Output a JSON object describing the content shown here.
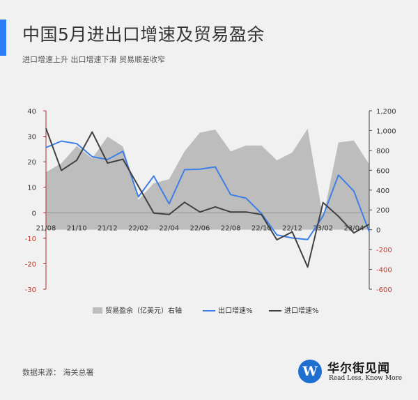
{
  "header": {
    "title": "中国5月进出口增速及贸易盈余",
    "subtitle": "进口增速上升 出口增速下滑 贸易顺差收窄"
  },
  "footer": {
    "source": "数据来源： 海关总署",
    "logo_name": "华尔街见闻",
    "logo_slogan": "Read Less, Know More",
    "logo_mark": "W"
  },
  "colors": {
    "accent": "#2e7cf6",
    "area": "#bdbdbd",
    "export": "#3d7fe6",
    "import": "#404040"
  },
  "chart_data": {
    "type": "line",
    "categories": [
      "21/08",
      "21/09",
      "21/10",
      "21/11",
      "21/12",
      "22/01",
      "22/02",
      "22/03",
      "22/04",
      "22/05",
      "22/06",
      "22/07",
      "22/08",
      "22/09",
      "22/10",
      "22/11",
      "22/12",
      "23/01",
      "23/02",
      "23/03",
      "23/04",
      "23/05"
    ],
    "x_tick_labels": [
      "21/08",
      "21/10",
      "21/12",
      "22/02",
      "22/04",
      "22/06",
      "22/08",
      "22/10",
      "22/12",
      "23/02",
      "23/04"
    ],
    "y_left": {
      "ticks": [
        "40",
        "30",
        "20",
        "10",
        "0",
        "-10",
        "-20",
        "-30"
      ],
      "range": [
        -30,
        40
      ]
    },
    "y_right": {
      "ticks": [
        "1,200",
        "1,000",
        "800",
        "600",
        "400",
        "200",
        "0",
        "-200",
        "-400",
        "-600"
      ],
      "range": [
        -600,
        1200
      ]
    },
    "series": [
      {
        "name": "贸易盈余（亿美元）右轴",
        "type": "area",
        "axis": "right",
        "values": [
          580,
          670,
          845,
          720,
          940,
          840,
          300,
          470,
          510,
          790,
          980,
          1010,
          790,
          850,
          850,
          700,
          780,
          1020,
          120,
          880,
          900,
          660
        ]
      },
      {
        "name": "出口增速%",
        "type": "line",
        "axis": "left",
        "values": [
          25.6,
          28.1,
          27.1,
          22.0,
          20.9,
          24.1,
          6.2,
          14.4,
          3.5,
          16.9,
          17.1,
          18.0,
          7.1,
          5.7,
          -0.3,
          -8.7,
          -9.9,
          -10.5,
          -1.3,
          14.8,
          8.5,
          -7.5
        ]
      },
      {
        "name": "进口增速%",
        "type": "line",
        "axis": "left",
        "values": [
          33.1,
          16.6,
          20.6,
          31.7,
          19.5,
          21.0,
          10.4,
          -0.1,
          -0.7,
          4.1,
          0.3,
          2.3,
          0.3,
          0.3,
          -0.7,
          -10.6,
          -7.5,
          -21.3,
          4.0,
          -1.4,
          -7.9,
          -4.5
        ]
      }
    ]
  }
}
